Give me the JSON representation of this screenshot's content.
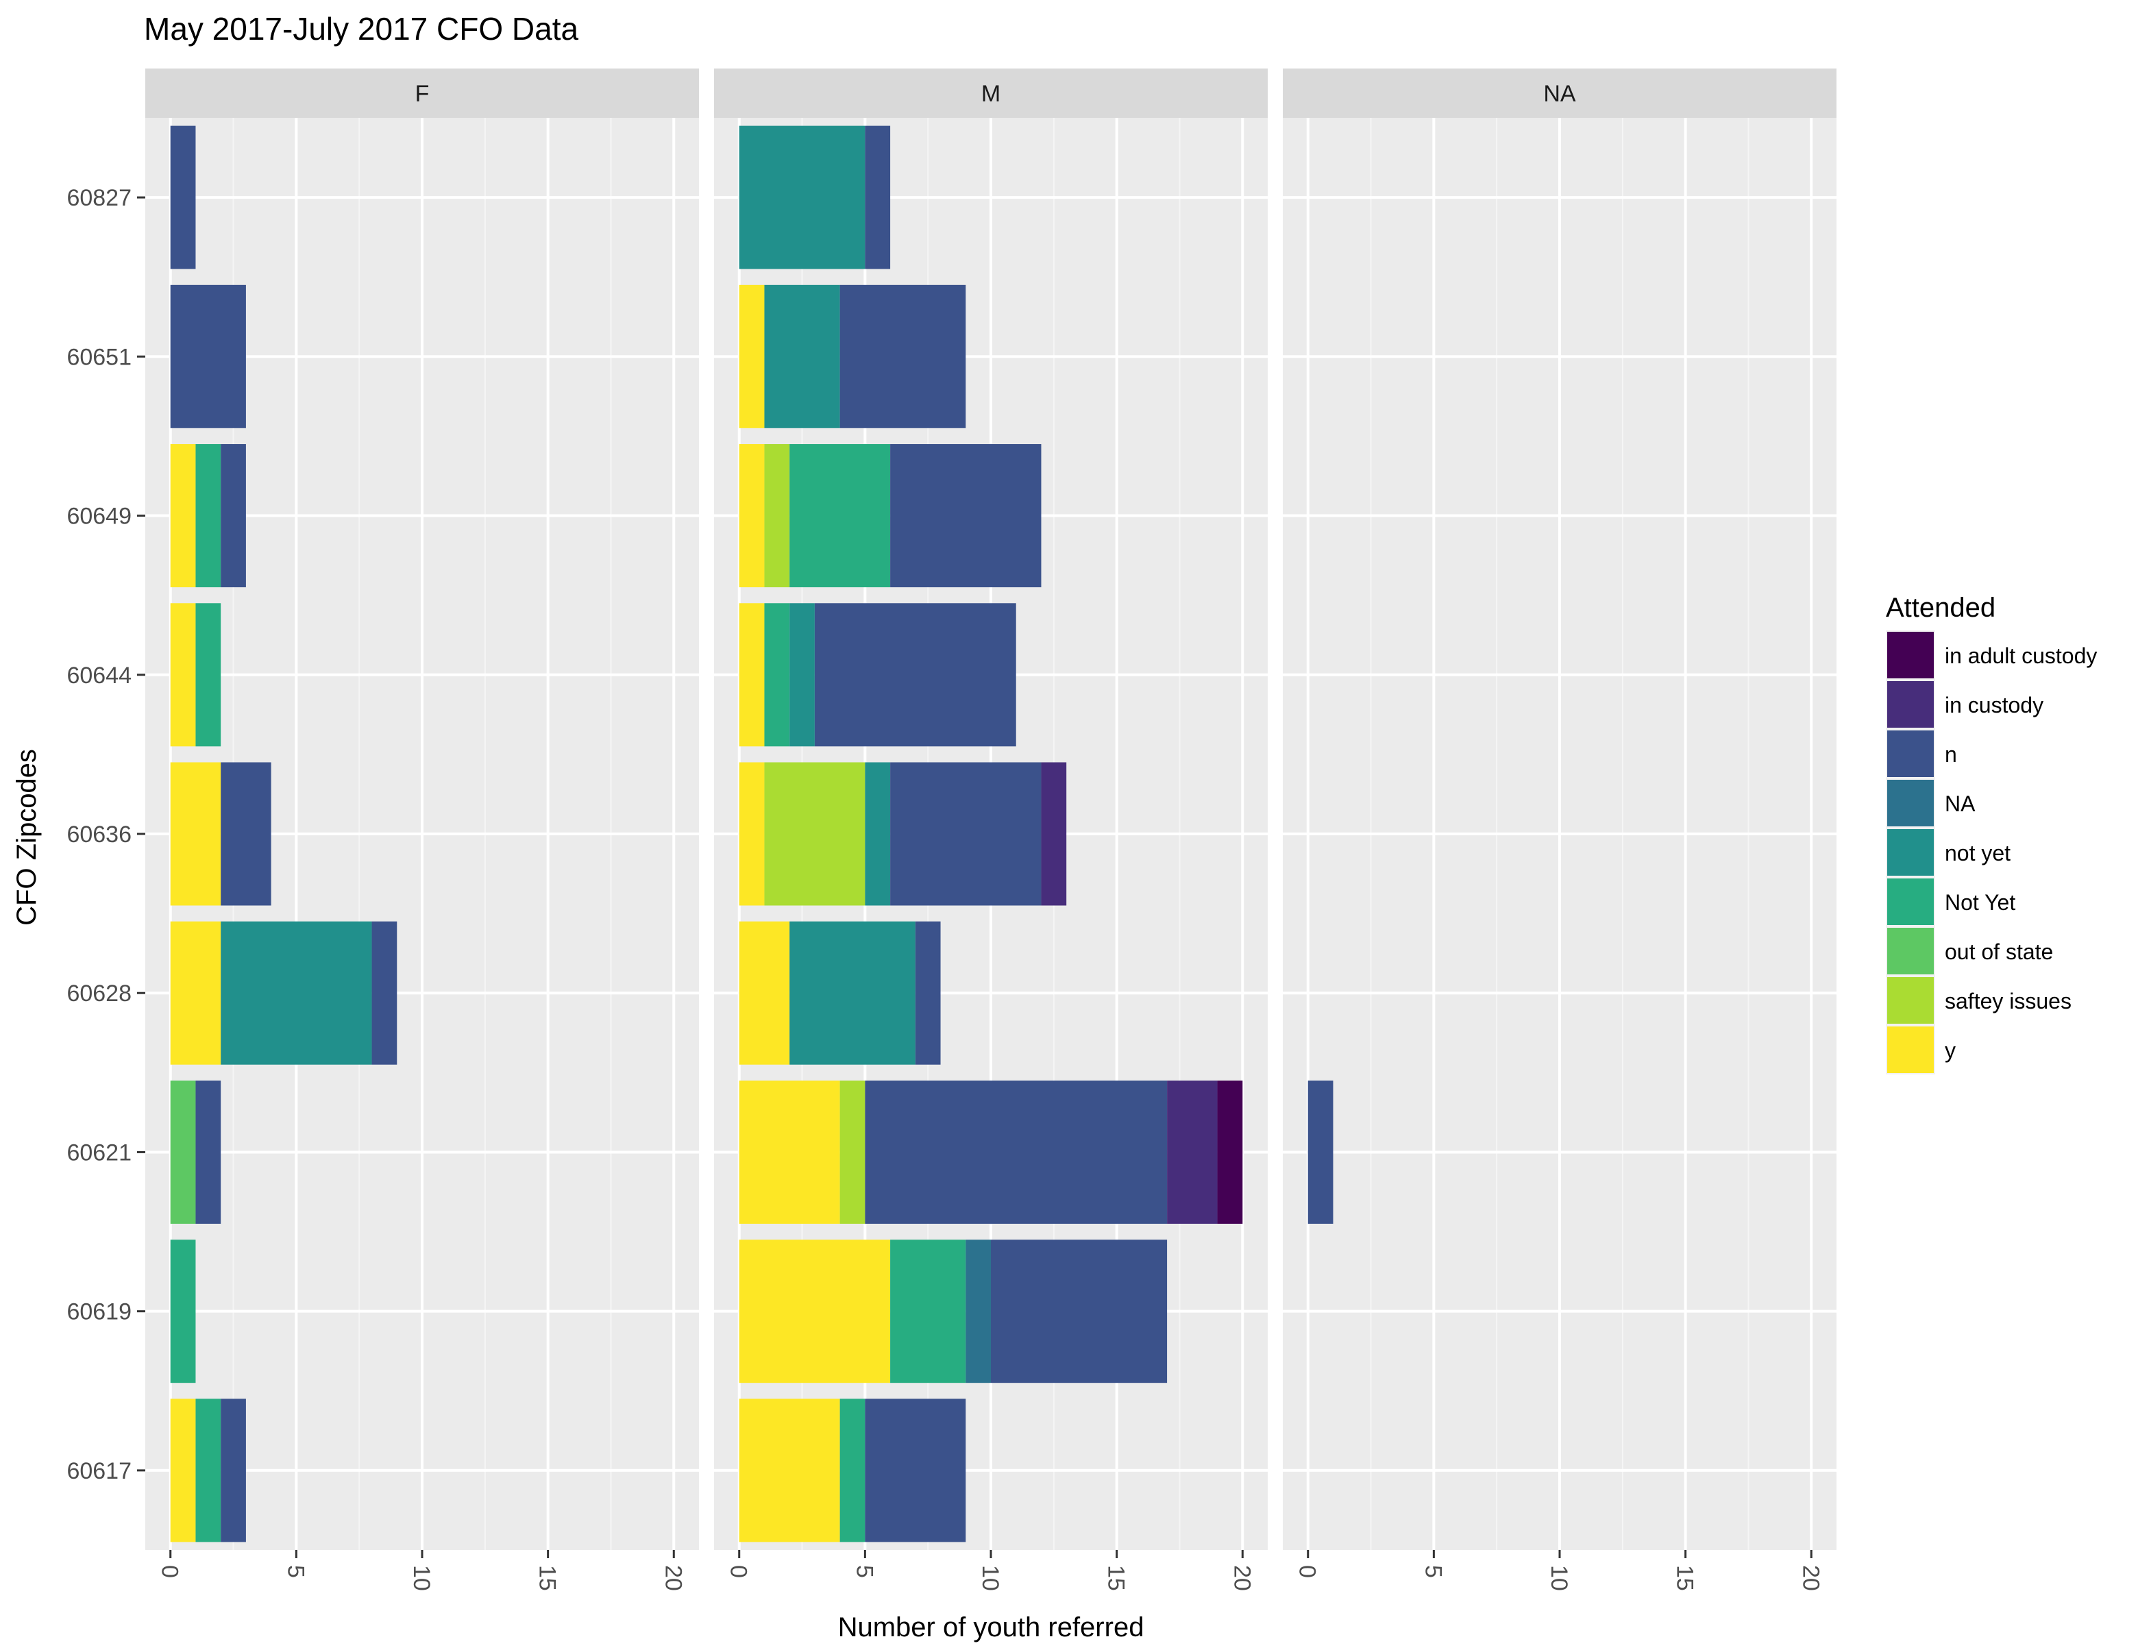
{
  "chart_data": {
    "type": "bar",
    "orientation": "horizontal",
    "stacked": true,
    "title": "May 2017-July 2017 CFO Data",
    "xlabel": "Number of youth referred",
    "ylabel": "CFO Zipcodes",
    "xlim": [
      -1,
      21
    ],
    "xticks": [
      "0",
      "5",
      "10",
      "15",
      "20"
    ],
    "categories": [
      "60827",
      "60651",
      "60649",
      "60644",
      "60636",
      "60628",
      "60621",
      "60619",
      "60617"
    ],
    "legend": {
      "title": "Attended",
      "position": "right",
      "items": [
        {
          "label": "in adult custody",
          "color": "#440154"
        },
        {
          "label": "in custody",
          "color": "#472D7B"
        },
        {
          "label": "n",
          "color": "#3B528B"
        },
        {
          "label": "NA",
          "color": "#2C728E"
        },
        {
          "label": "not yet",
          "color": "#21908C"
        },
        {
          "label": "Not Yet",
          "color": "#27AD81"
        },
        {
          "label": "out of state",
          "color": "#5DC863"
        },
        {
          "label": "saftey issues",
          "color": "#AADC32"
        },
        {
          "label": "y",
          "color": "#FDE725"
        }
      ]
    },
    "panels": [
      {
        "label": "F",
        "bars": [
          {
            "category": "60827",
            "segments": [
              {
                "status": "n",
                "value": 1
              }
            ]
          },
          {
            "category": "60651",
            "segments": [
              {
                "status": "n",
                "value": 3
              }
            ]
          },
          {
            "category": "60649",
            "segments": [
              {
                "status": "y",
                "value": 1
              },
              {
                "status": "Not Yet",
                "value": 1
              },
              {
                "status": "n",
                "value": 1
              }
            ]
          },
          {
            "category": "60644",
            "segments": [
              {
                "status": "y",
                "value": 1
              },
              {
                "status": "Not Yet",
                "value": 1
              }
            ]
          },
          {
            "category": "60636",
            "segments": [
              {
                "status": "y",
                "value": 2
              },
              {
                "status": "n",
                "value": 2
              }
            ]
          },
          {
            "category": "60628",
            "segments": [
              {
                "status": "y",
                "value": 2
              },
              {
                "status": "not yet",
                "value": 6
              },
              {
                "status": "n",
                "value": 1
              }
            ]
          },
          {
            "category": "60621",
            "segments": [
              {
                "status": "out of state",
                "value": 1
              },
              {
                "status": "n",
                "value": 1
              }
            ]
          },
          {
            "category": "60619",
            "segments": [
              {
                "status": "Not Yet",
                "value": 1
              }
            ]
          },
          {
            "category": "60617",
            "segments": [
              {
                "status": "y",
                "value": 1
              },
              {
                "status": "Not Yet",
                "value": 1
              },
              {
                "status": "n",
                "value": 1
              }
            ]
          }
        ]
      },
      {
        "label": "M",
        "bars": [
          {
            "category": "60827",
            "segments": [
              {
                "status": "not yet",
                "value": 5
              },
              {
                "status": "n",
                "value": 1
              }
            ]
          },
          {
            "category": "60651",
            "segments": [
              {
                "status": "y",
                "value": 1
              },
              {
                "status": "not yet",
                "value": 3
              },
              {
                "status": "n",
                "value": 5
              }
            ]
          },
          {
            "category": "60649",
            "segments": [
              {
                "status": "y",
                "value": 1
              },
              {
                "status": "saftey issues",
                "value": 1
              },
              {
                "status": "Not Yet",
                "value": 4
              },
              {
                "status": "n",
                "value": 6
              }
            ]
          },
          {
            "category": "60644",
            "segments": [
              {
                "status": "y",
                "value": 1
              },
              {
                "status": "Not Yet",
                "value": 1
              },
              {
                "status": "not yet",
                "value": 1
              },
              {
                "status": "n",
                "value": 8
              }
            ]
          },
          {
            "category": "60636",
            "segments": [
              {
                "status": "y",
                "value": 1
              },
              {
                "status": "saftey issues",
                "value": 4
              },
              {
                "status": "not yet",
                "value": 1
              },
              {
                "status": "n",
                "value": 6
              },
              {
                "status": "in custody",
                "value": 1
              }
            ]
          },
          {
            "category": "60628",
            "segments": [
              {
                "status": "y",
                "value": 2
              },
              {
                "status": "not yet",
                "value": 5
              },
              {
                "status": "n",
                "value": 1
              }
            ]
          },
          {
            "category": "60621",
            "segments": [
              {
                "status": "y",
                "value": 4
              },
              {
                "status": "saftey issues",
                "value": 1
              },
              {
                "status": "n",
                "value": 12
              },
              {
                "status": "in custody",
                "value": 2
              },
              {
                "status": "in adult custody",
                "value": 1
              }
            ]
          },
          {
            "category": "60619",
            "segments": [
              {
                "status": "y",
                "value": 6
              },
              {
                "status": "Not Yet",
                "value": 3
              },
              {
                "status": "NA",
                "value": 1
              },
              {
                "status": "n",
                "value": 7
              }
            ]
          },
          {
            "category": "60617",
            "segments": [
              {
                "status": "y",
                "value": 4
              },
              {
                "status": "Not Yet",
                "value": 1
              },
              {
                "status": "n",
                "value": 4
              }
            ]
          }
        ]
      },
      {
        "label": "NA",
        "bars": [
          {
            "category": "60621",
            "segments": [
              {
                "status": "n",
                "value": 1
              }
            ]
          }
        ]
      }
    ]
  }
}
